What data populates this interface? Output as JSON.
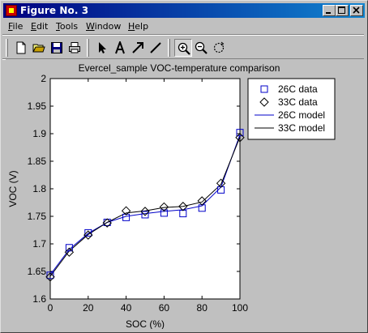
{
  "window": {
    "title": "Figure No. 3",
    "buttons": [
      "minimize",
      "maximize",
      "close"
    ]
  },
  "menu": [
    {
      "label": "File",
      "key": "F",
      "rest": "ile"
    },
    {
      "label": "Edit",
      "key": "E",
      "rest": "dit"
    },
    {
      "label": "Tools",
      "key": "T",
      "rest": "ools"
    },
    {
      "label": "Window",
      "key": "W",
      "rest": "indow"
    },
    {
      "label": "Help",
      "key": "H",
      "rest": "elp"
    }
  ],
  "toolbar": {
    "icons": [
      "new-file-icon",
      "open-folder-icon",
      "save-icon",
      "print-icon",
      "pointer-arrow-icon",
      "text-tool-icon",
      "arrow-tool-icon",
      "line-tool-icon",
      "zoom-in-icon",
      "zoom-out-icon",
      "rotate-icon"
    ],
    "active": "zoom-in-icon"
  },
  "colors": {
    "series_26c": "#0000c8",
    "series_33c": "#000000",
    "titlebar_start": "#000080",
    "titlebar_end": "#1084d0"
  },
  "chart_data": {
    "type": "line",
    "title": "Evercel_sample VOC-temperature comparison",
    "xlabel": "SOC (%)",
    "ylabel": "VOC (V)",
    "xlim": [
      0,
      100
    ],
    "ylim": [
      1.6,
      2.0
    ],
    "xticks": [
      0,
      20,
      40,
      60,
      80,
      100
    ],
    "yticks": [
      1.6,
      1.65,
      1.7,
      1.75,
      1.8,
      1.85,
      1.9,
      1.95,
      2.0
    ],
    "ytick_labels": [
      "1.6",
      "1.65",
      "1.7",
      "1.75",
      "1.8",
      "1.85",
      "1.9",
      "1.95",
      "2"
    ],
    "grid": false,
    "legend_position": "top-right",
    "series": [
      {
        "name": "26C data",
        "kind": "marker",
        "marker": "square",
        "color": "#0000c8",
        "x": [
          0,
          10,
          20,
          30,
          40,
          50,
          60,
          70,
          80,
          90,
          100
        ],
        "y": [
          1.643,
          1.693,
          1.72,
          1.739,
          1.748,
          1.753,
          1.756,
          1.755,
          1.765,
          1.798,
          1.902
        ]
      },
      {
        "name": "33C data",
        "kind": "marker",
        "marker": "diamond",
        "color": "#000000",
        "x": [
          0,
          10,
          20,
          30,
          40,
          50,
          60,
          70,
          80,
          90,
          100
        ],
        "y": [
          1.64,
          1.685,
          1.716,
          1.738,
          1.76,
          1.759,
          1.767,
          1.768,
          1.778,
          1.81,
          1.893
        ]
      },
      {
        "name": "26C model",
        "kind": "line",
        "color": "#0000c8",
        "x": [
          0,
          10,
          20,
          30,
          40,
          50,
          60,
          70,
          80,
          90,
          100
        ],
        "y": [
          1.644,
          1.69,
          1.719,
          1.739,
          1.75,
          1.755,
          1.759,
          1.762,
          1.769,
          1.803,
          1.898
        ]
      },
      {
        "name": "33C model",
        "kind": "line",
        "color": "#000000",
        "x": [
          0,
          10,
          20,
          30,
          40,
          50,
          60,
          70,
          80,
          90,
          100
        ],
        "y": [
          1.641,
          1.687,
          1.717,
          1.739,
          1.756,
          1.76,
          1.766,
          1.768,
          1.776,
          1.808,
          1.894
        ]
      }
    ]
  }
}
